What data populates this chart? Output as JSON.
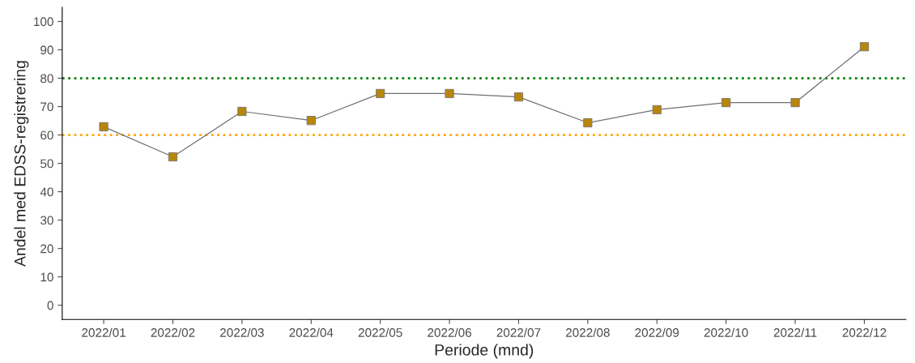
{
  "chart_data": {
    "type": "line",
    "xlabel": "Periode (mnd)",
    "ylabel": "Andel med EDSS-registrering",
    "categories": [
      "2022/01",
      "2022/02",
      "2022/03",
      "2022/04",
      "2022/05",
      "2022/06",
      "2022/07",
      "2022/08",
      "2022/09",
      "2022/10",
      "2022/11",
      "2022/12"
    ],
    "series": [
      {
        "color": "#b8860b",
        "values": [
          62.9,
          52.3,
          68.3,
          65.1,
          74.6,
          74.6,
          73.4,
          64.3,
          68.9,
          71.4,
          71.4,
          91.1
        ]
      }
    ],
    "ylim": [
      -5,
      105
    ],
    "yticks": [
      0,
      10,
      20,
      30,
      40,
      50,
      60,
      70,
      80,
      90,
      100
    ],
    "ref_lines": [
      {
        "axis": "y",
        "value": 80,
        "color": "#008000",
        "line_style": "dotted"
      },
      {
        "axis": "y",
        "value": 60,
        "color": "#ffa500",
        "line_style": "dotted"
      }
    ],
    "marker": "square",
    "line_style": "solid",
    "grid": false
  }
}
